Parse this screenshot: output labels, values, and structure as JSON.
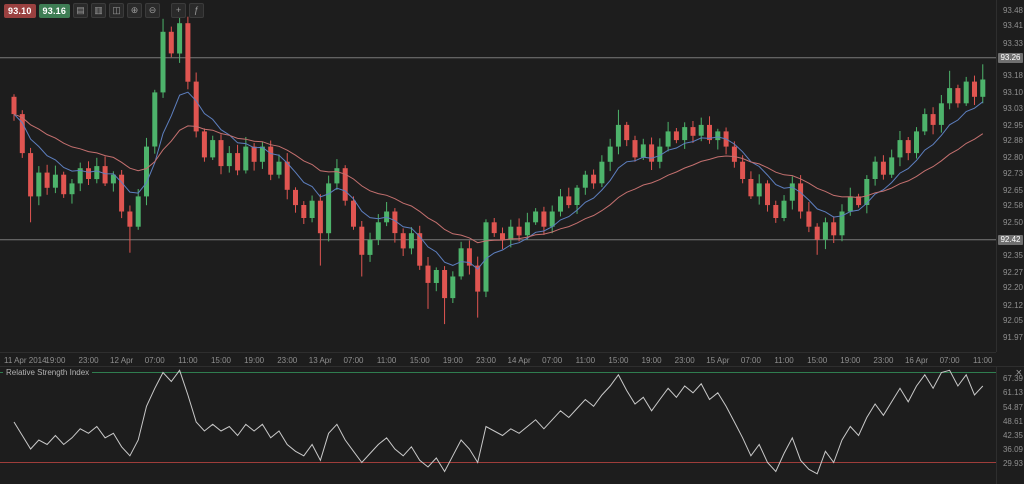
{
  "app": {
    "bg": "#1d1d1d",
    "panel_border": "#2e2e2e",
    "axis_text_color": "#8f8f8f"
  },
  "toolbar": {
    "sell_badge": {
      "label": "93.10",
      "bg": "#9a4140"
    },
    "buy_badge": {
      "label": "93.16",
      "bg": "#3e7d54"
    },
    "icon_groups": [
      {
        "icons": [
          {
            "name": "chart-type-icon",
            "glyph": "▤"
          },
          {
            "name": "bar-style-icon",
            "glyph": "▥"
          },
          {
            "name": "templates-icon",
            "glyph": "◫"
          },
          {
            "name": "zoom-in-icon",
            "glyph": "⊕"
          },
          {
            "name": "zoom-out-icon",
            "glyph": "⊖"
          }
        ]
      },
      {
        "icons": [
          {
            "name": "crosshair-icon",
            "glyph": "+"
          },
          {
            "name": "indicators-icon",
            "glyph": "ƒ"
          }
        ]
      }
    ]
  },
  "chart_data": {
    "type": "candlestick",
    "colors": {
      "bull": "#4db36b",
      "bear": "#e05551",
      "ma_fast": "#5d7fbf",
      "ma_slow": "#c4706f",
      "level": "#7a7a7a"
    },
    "open_first": 93.08,
    "closes": [
      93.0,
      92.82,
      92.62,
      92.73,
      92.66,
      92.72,
      92.63,
      92.68,
      92.75,
      92.7,
      92.76,
      92.68,
      92.72,
      92.55,
      92.48,
      92.62,
      92.85,
      93.1,
      93.38,
      93.28,
      93.42,
      93.15,
      92.92,
      92.8,
      92.88,
      92.76,
      92.82,
      92.74,
      92.85,
      92.78,
      92.85,
      92.72,
      92.78,
      92.65,
      92.58,
      92.52,
      92.6,
      92.45,
      92.68,
      92.75,
      92.6,
      92.48,
      92.35,
      92.42,
      92.5,
      92.55,
      92.45,
      92.38,
      92.45,
      92.3,
      92.22,
      92.28,
      92.15,
      92.25,
      92.38,
      92.3,
      92.18,
      92.5,
      92.45,
      92.42,
      92.48,
      92.44,
      92.5,
      92.55,
      92.48,
      92.55,
      92.62,
      92.58,
      92.66,
      92.72,
      92.68,
      92.78,
      92.85,
      92.95,
      92.88,
      92.8,
      92.86,
      92.78,
      92.85,
      92.92,
      92.88,
      92.94,
      92.9,
      92.95,
      92.88,
      92.92,
      92.85,
      92.78,
      92.7,
      92.62,
      92.68,
      92.58,
      92.52,
      92.6,
      92.68,
      92.55,
      92.48,
      92.42,
      92.5,
      92.44,
      92.55,
      92.62,
      92.58,
      92.7,
      92.78,
      92.72,
      92.8,
      92.88,
      92.82,
      92.92,
      93.0,
      92.95,
      93.05,
      93.12,
      93.05,
      93.15,
      93.08,
      93.16
    ],
    "wick_overrides": {
      "2": {
        "low": 92.5
      },
      "14": {
        "low": 92.36
      },
      "18": {
        "high": 93.44
      },
      "20": {
        "high": 93.47
      },
      "21": {
        "high": 93.45
      },
      "37": {
        "low": 92.3
      },
      "42": {
        "low": 92.25
      },
      "50": {
        "low": 92.1
      },
      "52": {
        "low": 92.03
      },
      "56": {
        "low": 92.06
      },
      "73": {
        "high": 93.02
      },
      "97": {
        "low": 92.35
      },
      "113": {
        "high": 93.2
      },
      "117": {
        "high": 93.23
      }
    },
    "ma_fast_period": 8,
    "ma_slow_period": 21,
    "levels": [
      {
        "value": 93.26,
        "label": "93.26"
      },
      {
        "value": 92.42,
        "label": "92.42"
      }
    ],
    "price_axis_labels": [
      "93.48",
      "93.41",
      "93.33",
      "93.26",
      "93.18",
      "93.10",
      "93.03",
      "92.95",
      "92.88",
      "92.80",
      "92.73",
      "92.65",
      "92.58",
      "92.50",
      "92.42",
      "92.35",
      "92.27",
      "92.20",
      "92.12",
      "92.05",
      "91.97"
    ],
    "time_labels": [
      {
        "index": 1,
        "label": "11 Apr 2014"
      },
      {
        "index": 5,
        "label": "19:00"
      },
      {
        "index": 9,
        "label": "23:00"
      },
      {
        "index": 13,
        "label": "12 Apr"
      },
      {
        "index": 17,
        "label": "07:00"
      },
      {
        "index": 21,
        "label": "11:00"
      },
      {
        "index": 25,
        "label": "15:00"
      },
      {
        "index": 29,
        "label": "19:00"
      },
      {
        "index": 33,
        "label": "23:00"
      },
      {
        "index": 37,
        "label": "13 Apr"
      },
      {
        "index": 41,
        "label": "07:00"
      },
      {
        "index": 45,
        "label": "11:00"
      },
      {
        "index": 49,
        "label": "15:00"
      },
      {
        "index": 53,
        "label": "19:00"
      },
      {
        "index": 57,
        "label": "23:00"
      },
      {
        "index": 61,
        "label": "14 Apr"
      },
      {
        "index": 65,
        "label": "07:00"
      },
      {
        "index": 69,
        "label": "11:00"
      },
      {
        "index": 73,
        "label": "15:00"
      },
      {
        "index": 77,
        "label": "19:00"
      },
      {
        "index": 81,
        "label": "23:00"
      },
      {
        "index": 85,
        "label": "15 Apr"
      },
      {
        "index": 89,
        "label": "07:00"
      },
      {
        "index": 93,
        "label": "11:00"
      },
      {
        "index": 97,
        "label": "15:00"
      },
      {
        "index": 101,
        "label": "19:00"
      },
      {
        "index": 105,
        "label": "23:00"
      },
      {
        "index": 109,
        "label": "16 Apr"
      },
      {
        "index": 113,
        "label": "07:00"
      },
      {
        "index": 117,
        "label": "11:00"
      }
    ],
    "rsi": [
      48,
      42,
      36,
      40,
      38,
      42,
      38,
      41,
      45,
      43,
      46,
      41,
      43,
      37,
      33,
      40,
      55,
      63,
      70,
      66,
      71,
      60,
      48,
      44,
      47,
      44,
      46,
      42,
      47,
      44,
      47,
      41,
      44,
      38,
      35,
      33,
      38,
      31,
      43,
      47,
      40,
      35,
      30,
      34,
      38,
      41,
      36,
      33,
      37,
      31,
      28,
      32,
      26,
      33,
      40,
      36,
      30,
      46,
      44,
      42,
      45,
      43,
      46,
      49,
      45,
      49,
      53,
      50,
      54,
      58,
      55,
      60,
      64,
      69,
      62,
      56,
      59,
      53,
      58,
      63,
      59,
      64,
      61,
      65,
      58,
      61,
      55,
      48,
      41,
      33,
      38,
      30,
      26,
      34,
      41,
      31,
      27,
      25,
      35,
      30,
      40,
      46,
      42,
      50,
      56,
      51,
      57,
      63,
      57,
      64,
      69,
      63,
      70,
      71,
      64,
      69,
      60,
      64
    ]
  },
  "rsi_panel": {
    "title": "Relative Strength Index",
    "close_label": "×",
    "line_color": "#c9c9c9",
    "overbought": 70,
    "oversold": 30,
    "overbought_color": "#2f7d4f",
    "oversold_color": "#9e3d3a",
    "axis_labels": [
      "67.39",
      "61.13",
      "54.87",
      "48.61",
      "42.35",
      "36.09",
      "29.93"
    ]
  }
}
